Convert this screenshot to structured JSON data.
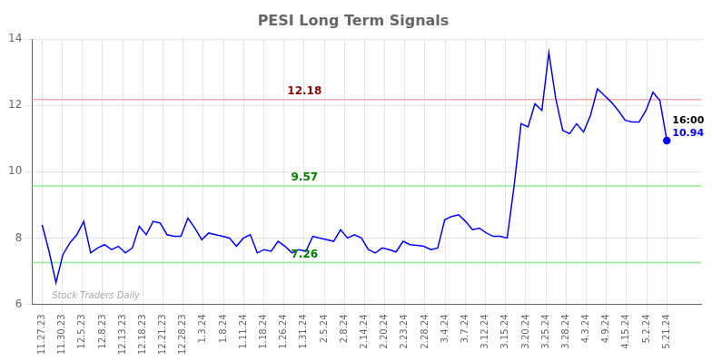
{
  "chart_data": {
    "type": "line",
    "title": "PESI Long Term Signals",
    "x": [
      0,
      0.3444,
      0.6889,
      1.0333,
      1.3778,
      1.7222,
      2.0667,
      2.4111,
      2.7556,
      3.1,
      3.4444,
      3.7889,
      4.1333,
      4.4778,
      4.8222,
      5.1667,
      5.5111,
      5.8556,
      6.2,
      6.5444,
      6.8889,
      7.2333,
      7.5778,
      7.9222,
      8.2667,
      8.6111,
      8.9556,
      9.3,
      9.6444,
      9.9889,
      10.3333,
      10.6778,
      11.0222,
      11.3667,
      11.7111,
      12.0556,
      12.4,
      12.7444,
      13.0889,
      13.4333,
      13.7778,
      14.1222,
      14.4667,
      14.8111,
      15.1556,
      15.5,
      15.8444,
      16.1889,
      16.5333,
      16.8778,
      17.2222,
      17.5667,
      17.9111,
      18.2556,
      18.6,
      18.9444,
      19.2889,
      19.6333,
      19.9778,
      20.3222,
      20.6667,
      21.0111,
      21.3556,
      21.7,
      22.0444,
      22.3889,
      22.7333,
      23.0778,
      23.4222,
      23.7667,
      24.1111,
      24.4556,
      24.8,
      25.1444,
      25.4889,
      25.8333,
      26.1778,
      26.5222,
      26.8667,
      27.2111,
      27.5556,
      27.9,
      28.2444,
      28.5889,
      28.9333,
      29.2778,
      29.6222,
      29.9667,
      30.3111,
      30.6556,
      31
    ],
    "values": [
      8.4,
      7.6,
      6.65,
      7.5,
      7.85,
      8.1,
      8.5,
      7.55,
      7.7,
      7.8,
      7.65,
      7.75,
      7.55,
      7.7,
      8.35,
      8.1,
      8.5,
      8.45,
      8.1,
      8.05,
      8.05,
      8.6,
      8.3,
      7.95,
      8.15,
      8.1,
      8.05,
      8.0,
      7.75,
      8.0,
      8.1,
      7.55,
      7.65,
      7.6,
      7.9,
      7.75,
      7.55,
      7.65,
      7.6,
      8.05,
      8.0,
      7.95,
      7.9,
      8.25,
      8.0,
      8.1,
      8.0,
      7.65,
      7.55,
      7.7,
      7.65,
      7.58,
      7.9,
      7.8,
      7.78,
      7.75,
      7.65,
      7.7,
      8.55,
      8.65,
      8.7,
      8.5,
      8.25,
      8.3,
      8.15,
      8.05,
      8.05,
      8.0,
      9.57,
      11.45,
      11.35,
      12.05,
      11.85,
      13.6,
      12.2,
      11.25,
      11.15,
      11.45,
      11.2,
      11.7,
      12.5,
      12.3,
      12.1,
      11.85,
      11.55,
      11.5,
      11.5,
      11.85,
      12.4,
      12.15,
      10.94
    ],
    "color": "#0000ff",
    "xlim": [
      -0.5,
      32.7
    ],
    "xticks": [
      {
        "value": 0,
        "label": "11.27.23"
      },
      {
        "value": 1,
        "label": "11.30.23"
      },
      {
        "value": 2,
        "label": "12.5.23"
      },
      {
        "value": 3,
        "label": "12.8.23"
      },
      {
        "value": 4,
        "label": "12.13.23"
      },
      {
        "value": 5,
        "label": "12.18.23"
      },
      {
        "value": 6,
        "label": "12.21.23"
      },
      {
        "value": 7,
        "label": "12.28.23"
      },
      {
        "value": 8,
        "label": "1.3.24"
      },
      {
        "value": 9,
        "label": "1.8.24"
      },
      {
        "value": 10,
        "label": "1.11.24"
      },
      {
        "value": 11,
        "label": "1.18.24"
      },
      {
        "value": 12,
        "label": "1.26.24"
      },
      {
        "value": 13,
        "label": "1.31.24"
      },
      {
        "value": 14,
        "label": "2.5.24"
      },
      {
        "value": 15,
        "label": "2.8.24"
      },
      {
        "value": 16,
        "label": "2.14.24"
      },
      {
        "value": 17,
        "label": "2.20.24"
      },
      {
        "value": 18,
        "label": "2.23.24"
      },
      {
        "value": 19,
        "label": "2.28.24"
      },
      {
        "value": 20,
        "label": "3.4.24"
      },
      {
        "value": 21,
        "label": "3.7.24"
      },
      {
        "value": 22,
        "label": "3.12.24"
      },
      {
        "value": 23,
        "label": "3.15.24"
      },
      {
        "value": 24,
        "label": "3.20.24"
      },
      {
        "value": 25,
        "label": "3.25.24"
      },
      {
        "value": 26,
        "label": "3.28.24"
      },
      {
        "value": 27,
        "label": "4.3.24"
      },
      {
        "value": 28,
        "label": "4.9.24"
      },
      {
        "value": 29,
        "label": "4.15.24"
      },
      {
        "value": 30,
        "label": "5.2.24"
      },
      {
        "value": 31,
        "label": "5.21.24"
      }
    ],
    "ylim": [
      6,
      14
    ],
    "yticks": [
      6,
      8,
      10,
      12,
      14
    ],
    "grid": true,
    "hlines": [
      {
        "value": 12.18,
        "label": "12.18",
        "color": "#ffaaaa",
        "label_color": "#8b0000"
      },
      {
        "value": 9.57,
        "label": "9.57",
        "color": "#90ee90",
        "label_color": "#008000"
      },
      {
        "value": 7.26,
        "label": "7.26",
        "color": "#90ee90",
        "label_color": "#008000"
      }
    ],
    "last_point": {
      "time": "16:00",
      "price": "10.94"
    },
    "watermark": "Stock Traders Daily"
  }
}
